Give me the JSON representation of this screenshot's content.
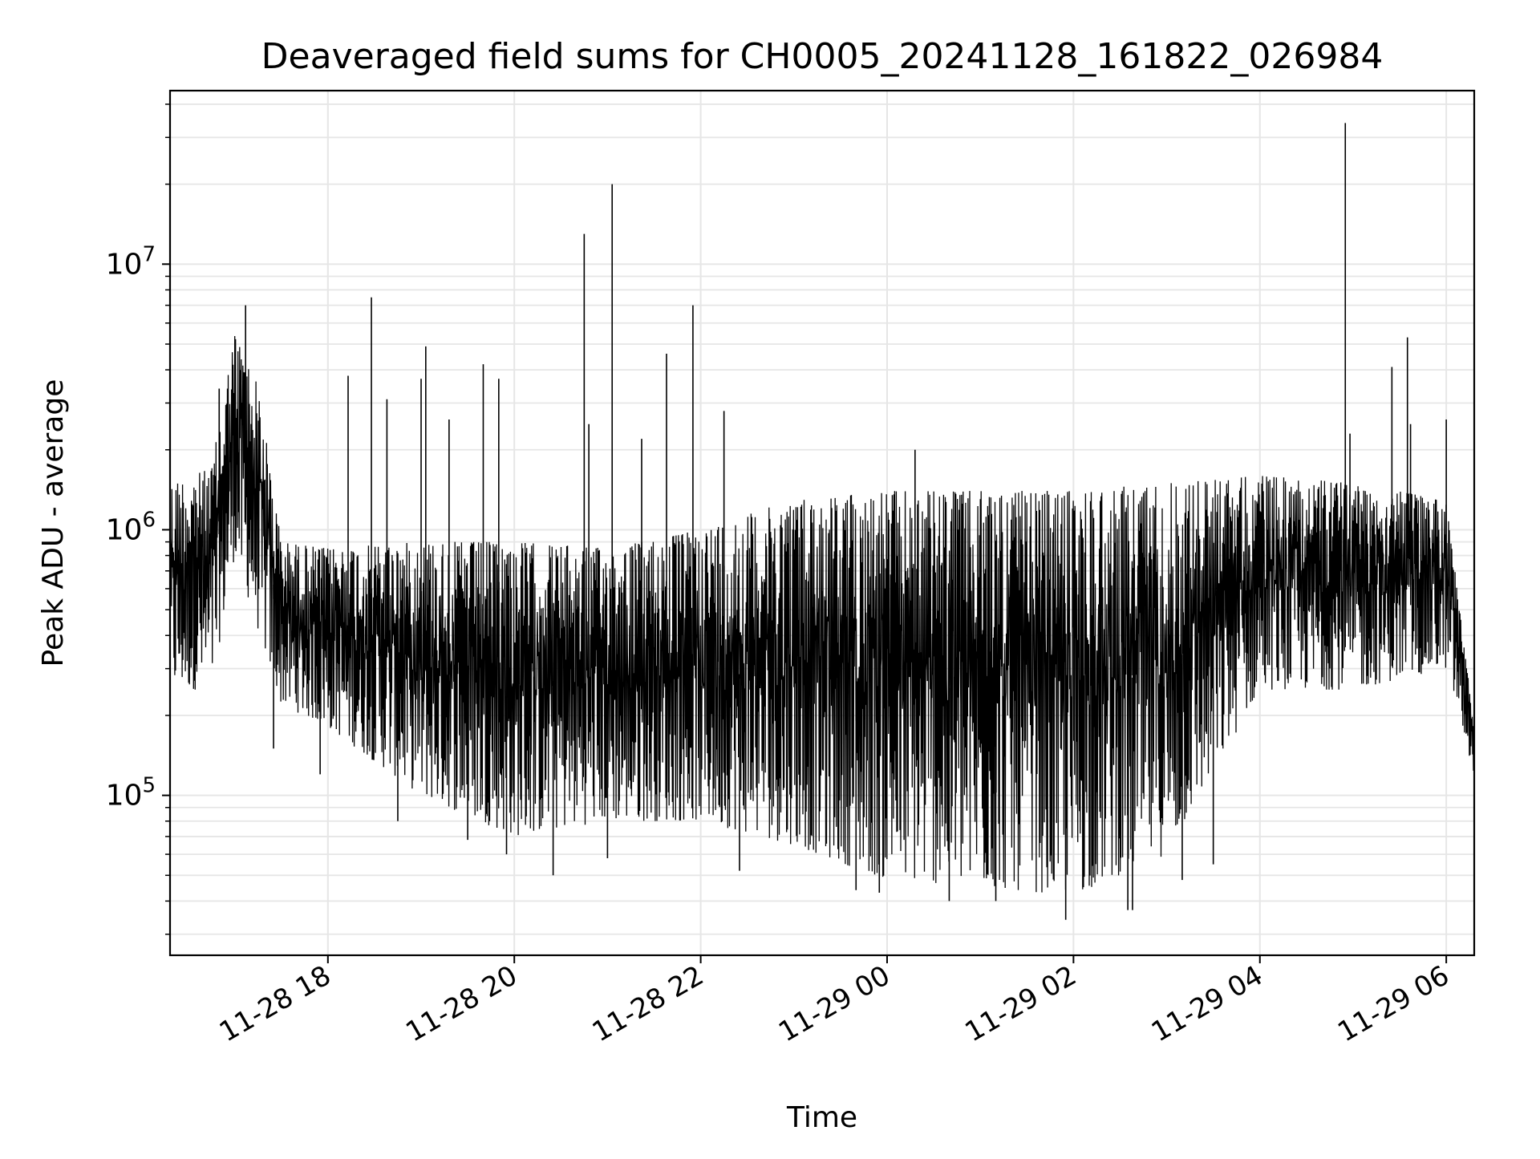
{
  "chart_data": {
    "type": "line",
    "title": "Deaveraged field sums for CH0005_20241128_161822_026984",
    "xlabel": "Time",
    "ylabel": "Peak ADU - average",
    "yscale": "log",
    "ylim": [
      25000,
      45000000
    ],
    "xlim": [
      "2024-11-28 16:18:22",
      "2024-11-29 06:18:00"
    ],
    "grid": true,
    "line_color": "#000000",
    "grid_color": "#e6e6e6",
    "x_ticks": [
      {
        "value": "2024-11-28 18:00",
        "label": "11-28 18"
      },
      {
        "value": "2024-11-28 20:00",
        "label": "11-28 20"
      },
      {
        "value": "2024-11-28 22:00",
        "label": "11-28 22"
      },
      {
        "value": "2024-11-29 00:00",
        "label": "11-29 00"
      },
      {
        "value": "2024-11-29 02:00",
        "label": "11-29 02"
      },
      {
        "value": "2024-11-29 04:00",
        "label": "11-29 04"
      },
      {
        "value": "2024-11-29 06:00",
        "label": "11-29 06"
      }
    ],
    "y_ticks": [
      {
        "value": 100000,
        "base": "10",
        "exp": "5"
      },
      {
        "value": 1000000,
        "base": "10",
        "exp": "6"
      },
      {
        "value": 10000000,
        "base": "10",
        "exp": "7"
      }
    ],
    "series": [
      {
        "envelope_upper": [
          [
            "2024-11-28 16:18",
            1500000
          ],
          [
            "2024-11-28 16:45",
            1700000
          ],
          [
            "2024-11-28 17:00",
            5500000
          ],
          [
            "2024-11-28 17:15",
            3500000
          ],
          [
            "2024-11-28 17:30",
            900000
          ],
          [
            "2024-11-28 18:00",
            850000
          ],
          [
            "2024-11-28 19:00",
            900000
          ],
          [
            "2024-11-28 20:00",
            900000
          ],
          [
            "2024-11-28 21:00",
            850000
          ],
          [
            "2024-11-28 22:00",
            1000000
          ],
          [
            "2024-11-28 23:00",
            1300000
          ],
          [
            "2024-11-29 00:00",
            1400000
          ],
          [
            "2024-11-29 01:00",
            1400000
          ],
          [
            "2024-11-29 02:00",
            1400000
          ],
          [
            "2024-11-29 03:00",
            1500000
          ],
          [
            "2024-11-29 04:00",
            1600000
          ],
          [
            "2024-11-29 05:00",
            1500000
          ],
          [
            "2024-11-29 06:00",
            1300000
          ],
          [
            "2024-11-29 06:18",
            180000
          ]
        ],
        "envelope_lower": [
          [
            "2024-11-28 16:18",
            250000
          ],
          [
            "2024-11-28 16:45",
            250000
          ],
          [
            "2024-11-28 17:00",
            800000
          ],
          [
            "2024-11-28 17:30",
            220000
          ],
          [
            "2024-11-28 18:00",
            180000
          ],
          [
            "2024-11-28 19:00",
            100000
          ],
          [
            "2024-11-28 20:00",
            70000
          ],
          [
            "2024-11-28 21:00",
            80000
          ],
          [
            "2024-11-28 22:00",
            80000
          ],
          [
            "2024-11-28 23:00",
            65000
          ],
          [
            "2024-11-29 00:00",
            48000
          ],
          [
            "2024-11-29 01:00",
            45000
          ],
          [
            "2024-11-29 02:00",
            42000
          ],
          [
            "2024-11-29 03:00",
            60000
          ],
          [
            "2024-11-29 03:30",
            120000
          ],
          [
            "2024-11-29 04:00",
            250000
          ],
          [
            "2024-11-29 05:00",
            250000
          ],
          [
            "2024-11-29 06:00",
            300000
          ],
          [
            "2024-11-29 06:18",
            120000
          ]
        ],
        "spikes": [
          [
            "2024-11-28 16:50",
            3400000
          ],
          [
            "2024-11-28 17:07",
            7000000
          ],
          [
            "2024-11-28 18:13",
            3800000
          ],
          [
            "2024-11-28 18:28",
            7500000
          ],
          [
            "2024-11-28 18:38",
            3100000
          ],
          [
            "2024-11-28 19:00",
            3700000
          ],
          [
            "2024-11-28 19:03",
            4900000
          ],
          [
            "2024-11-28 19:18",
            2600000
          ],
          [
            "2024-11-28 19:40",
            4200000
          ],
          [
            "2024-11-28 19:50",
            3700000
          ],
          [
            "2024-11-28 20:45",
            13000000
          ],
          [
            "2024-11-28 20:48",
            2500000
          ],
          [
            "2024-11-28 21:03",
            20000000
          ],
          [
            "2024-11-28 21:22",
            2200000
          ],
          [
            "2024-11-28 21:38",
            4600000
          ],
          [
            "2024-11-28 21:55",
            7000000
          ],
          [
            "2024-11-28 22:15",
            2800000
          ],
          [
            "2024-11-29 00:18",
            2000000
          ],
          [
            "2024-11-29 04:55",
            34000000
          ],
          [
            "2024-11-29 04:58",
            2300000
          ],
          [
            "2024-11-29 05:25",
            4100000
          ],
          [
            "2024-11-29 05:35",
            5300000
          ],
          [
            "2024-11-29 05:37",
            2500000
          ],
          [
            "2024-11-29 06:00",
            2600000
          ]
        ],
        "dips": [
          [
            "2024-11-28 17:25",
            150000
          ],
          [
            "2024-11-28 17:55",
            120000
          ],
          [
            "2024-11-28 18:45",
            80000
          ],
          [
            "2024-11-28 19:30",
            68000
          ],
          [
            "2024-11-28 19:55",
            60000
          ],
          [
            "2024-11-28 20:25",
            50000
          ],
          [
            "2024-11-28 21:00",
            58000
          ],
          [
            "2024-11-28 22:25",
            52000
          ],
          [
            "2024-11-28 23:40",
            44000
          ],
          [
            "2024-11-28 23:55",
            43000
          ],
          [
            "2024-11-29 00:40",
            40000
          ],
          [
            "2024-11-29 01:10",
            40000
          ],
          [
            "2024-11-29 01:55",
            34000
          ],
          [
            "2024-11-29 02:35",
            37000
          ],
          [
            "2024-11-29 02:38",
            37000
          ],
          [
            "2024-11-29 03:10",
            48000
          ],
          [
            "2024-11-29 03:30",
            55000
          ]
        ]
      }
    ]
  }
}
